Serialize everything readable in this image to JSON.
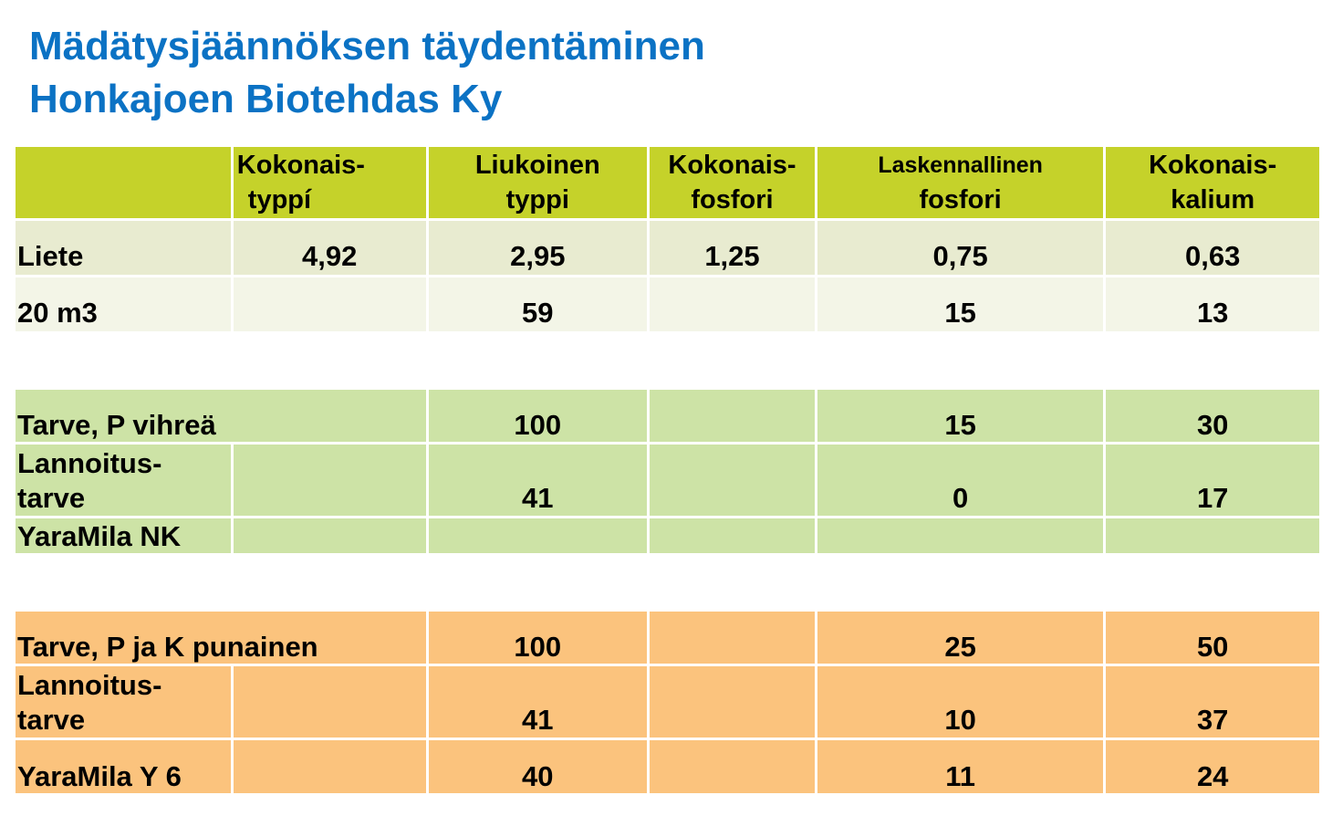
{
  "title": {
    "line1": "Mädätysjäännöksen täydentäminen",
    "line2": "Honkajoen Biotehdas Ky"
  },
  "colors": {
    "title": "#0b72c4",
    "header": "#c5d22a",
    "row_liete": "#e8ebd0",
    "row_m3": "#f3f5e7",
    "green": "#cde3a6",
    "orange": "#fbc37d"
  },
  "headers": {
    "col1": {
      "a": "Kokonais-",
      "b": "typpí"
    },
    "col2": {
      "a": "Liukoinen",
      "b": "typpi"
    },
    "col3": {
      "a": "Kokonais-",
      "b": "fosfori"
    },
    "col4": {
      "a": "Laskennallinen",
      "b": "fosfori"
    },
    "col5": {
      "a": "Kokonais-",
      "b": "kalium"
    }
  },
  "rows": {
    "liete": {
      "label": "Liete",
      "v1": "4,92",
      "v2": "2,95",
      "v3": "1,25",
      "v4": "0,75",
      "v5": "0,63"
    },
    "m3": {
      "label": "20 m3",
      "v1": "",
      "v2": "59",
      "v3": "",
      "v4": "15",
      "v5": "13"
    },
    "tarve_green": {
      "label": "Tarve, P vihreä",
      "v2": "100",
      "v3": "",
      "v4": "15",
      "v5": "30"
    },
    "lannoitus_green": {
      "label_a": "Lannoitus-",
      "label_b": "tarve",
      "v2": "41",
      "v3": "",
      "v4": "0",
      "v5": "17"
    },
    "yara_nk": {
      "label": "YaraMila NK",
      "v2": "",
      "v3": "",
      "v4": "",
      "v5": ""
    },
    "tarve_orange": {
      "label": "Tarve, P ja K punainen",
      "v2": "100",
      "v3": "",
      "v4": "25",
      "v5": "50"
    },
    "lannoitus_orange": {
      "label_a": "Lannoitus-",
      "label_b": "tarve",
      "v2": "41",
      "v3": "",
      "v4": "10",
      "v5": "37"
    },
    "yara_y6": {
      "label": "YaraMila Y 6",
      "v2": "40",
      "v3": "",
      "v4": "11",
      "v5": "24"
    }
  }
}
